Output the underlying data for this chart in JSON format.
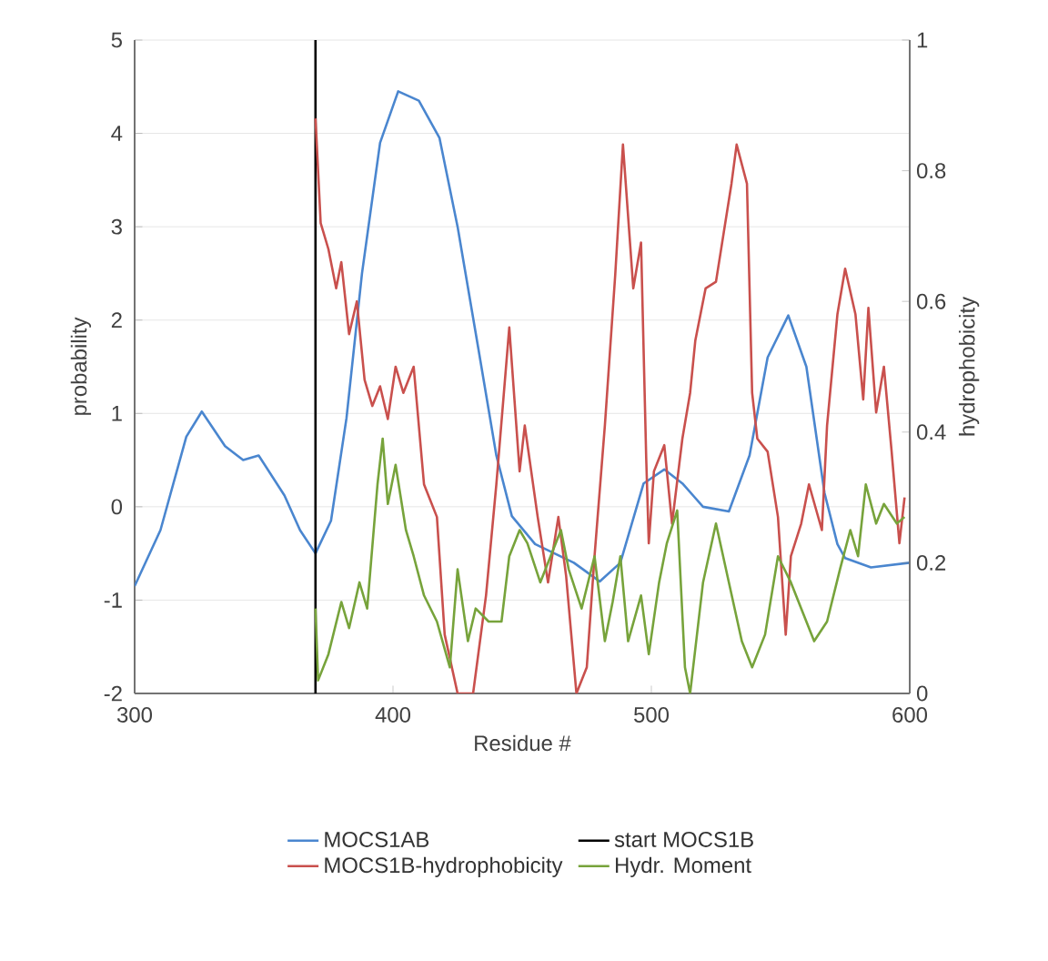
{
  "chart_data": {
    "type": "line",
    "xlabel": "Residue #",
    "ylabel": "probability",
    "y2label": "hydrophobicity",
    "xlim": [
      300,
      600
    ],
    "xticks": [
      300,
      400,
      500,
      600
    ],
    "ylim": [
      -2,
      5
    ],
    "yticks": [
      -2,
      -1,
      0,
      1,
      2,
      3,
      4,
      5
    ],
    "y2lim": [
      0,
      1
    ],
    "y2ticks": [
      0,
      0.2,
      0.4,
      0.6,
      0.8,
      1
    ],
    "grid": "y",
    "legend": "bottom",
    "marker": "none",
    "line_style": "solid",
    "series": [
      {
        "name": "MOCS1AB",
        "color": "#4a86cf",
        "x": [
          300,
          310,
          320,
          326,
          335,
          342,
          348,
          358,
          364,
          370,
          376,
          382,
          388,
          395,
          402,
          410,
          418,
          425,
          433,
          440,
          446,
          455,
          470,
          480,
          488,
          497,
          505,
          512,
          520,
          530,
          538,
          545,
          553,
          560,
          567,
          572,
          575,
          585,
          600
        ],
        "values": [
          -0.85,
          -0.25,
          0.75,
          1.02,
          0.65,
          0.5,
          0.55,
          0.12,
          -0.25,
          -0.5,
          -0.15,
          0.95,
          2.5,
          3.9,
          4.45,
          4.35,
          3.95,
          3.0,
          1.7,
          0.55,
          -0.1,
          -0.4,
          -0.6,
          -0.8,
          -0.6,
          0.25,
          0.4,
          0.25,
          0.0,
          -0.05,
          0.55,
          1.6,
          2.05,
          1.5,
          0.15,
          -0.4,
          -0.55,
          -0.65,
          -0.6
        ]
      },
      {
        "name": "start MOCS1B",
        "color": "#000000",
        "x": [
          370,
          370
        ],
        "values": [
          -2,
          5
        ]
      },
      {
        "name": "MOCS1B-hydrophobicity",
        "color": "#c9504d",
        "axis": "y2",
        "x": [
          370,
          372,
          375,
          378,
          380,
          383,
          386,
          389,
          392,
          395,
          398,
          401,
          404,
          408,
          412,
          417,
          420,
          425,
          431,
          436,
          440,
          445,
          449,
          451,
          456,
          460,
          464,
          467,
          471,
          475,
          478,
          482,
          486,
          489,
          493,
          496,
          498,
          499,
          501,
          505,
          508,
          512,
          515,
          517,
          521,
          525,
          531,
          533,
          537,
          539,
          541,
          545,
          549,
          552,
          554,
          558,
          561,
          566,
          568,
          572,
          575,
          579,
          582,
          584,
          587,
          590,
          593,
          596,
          598
        ],
        "values": [
          0.88,
          0.72,
          0.68,
          0.62,
          0.66,
          0.55,
          0.6,
          0.48,
          0.44,
          0.47,
          0.42,
          0.5,
          0.46,
          0.5,
          0.32,
          0.27,
          0.09,
          0.0,
          0.0,
          0.15,
          0.32,
          0.56,
          0.34,
          0.41,
          0.27,
          0.17,
          0.27,
          0.18,
          0.0,
          0.04,
          0.21,
          0.41,
          0.64,
          0.84,
          0.62,
          0.69,
          0.36,
          0.23,
          0.34,
          0.38,
          0.26,
          0.39,
          0.46,
          0.54,
          0.62,
          0.63,
          0.78,
          0.84,
          0.78,
          0.46,
          0.39,
          0.37,
          0.27,
          0.09,
          0.21,
          0.26,
          0.32,
          0.25,
          0.41,
          0.58,
          0.65,
          0.58,
          0.45,
          0.59,
          0.43,
          0.5,
          0.37,
          0.23,
          0.3
        ]
      },
      {
        "name": "Hydr. Moment",
        "color": "#77a33b",
        "axis": "y2",
        "x": [
          370,
          371,
          375,
          380,
          383,
          387,
          390,
          394,
          396,
          398,
          401,
          405,
          408,
          412,
          417,
          422,
          425,
          429,
          432,
          437,
          442,
          445,
          449,
          452,
          457,
          461,
          465,
          468,
          473,
          478,
          482,
          485,
          488,
          491,
          496,
          499,
          503,
          506,
          510,
          513,
          515,
          520,
          525,
          530,
          535,
          539,
          544,
          549,
          554,
          558,
          563,
          568,
          573,
          577,
          580,
          583,
          587,
          590,
          595,
          598
        ],
        "values": [
          0.13,
          0.02,
          0.06,
          0.14,
          0.1,
          0.17,
          0.13,
          0.32,
          0.39,
          0.29,
          0.35,
          0.25,
          0.21,
          0.15,
          0.11,
          0.04,
          0.19,
          0.08,
          0.13,
          0.11,
          0.11,
          0.21,
          0.25,
          0.23,
          0.17,
          0.21,
          0.25,
          0.19,
          0.13,
          0.21,
          0.08,
          0.14,
          0.21,
          0.08,
          0.15,
          0.06,
          0.17,
          0.23,
          0.28,
          0.04,
          0.0,
          0.17,
          0.26,
          0.17,
          0.08,
          0.04,
          0.09,
          0.21,
          0.17,
          0.13,
          0.08,
          0.11,
          0.19,
          0.25,
          0.21,
          0.32,
          0.26,
          0.29,
          0.26,
          0.27
        ]
      }
    ]
  }
}
